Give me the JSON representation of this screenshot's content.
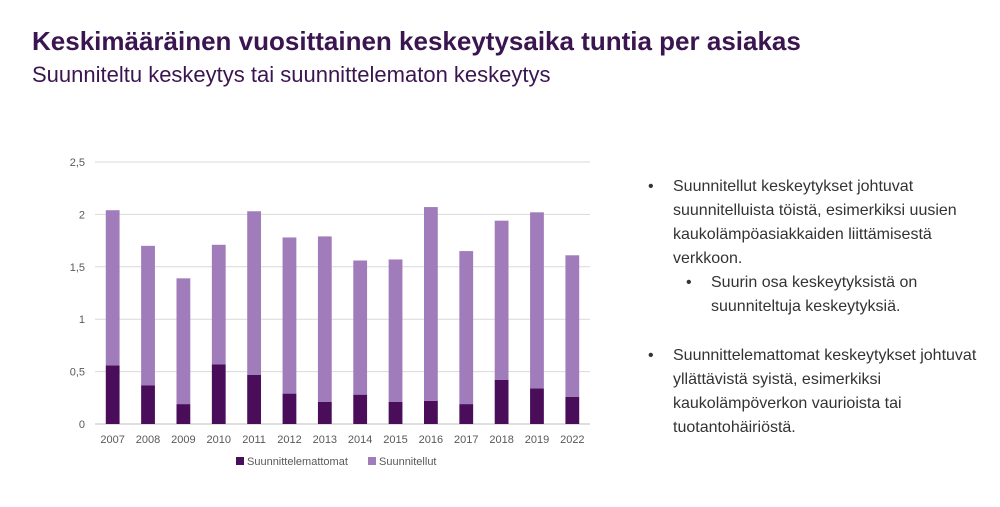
{
  "title": "Keskimääräinen vuosittainen keskeytysaika tuntia per asiakas",
  "subtitle": "Suunniteltu keskeytys tai suunnittelematon keskeytys",
  "bullets": {
    "b1": "Suunnitellut keskeytykset johtuvat suunnitelluista töistä, esimerkiksi uusien kaukolämpöasiakkaiden liittämisestä verkkoon.",
    "b1_sub": "Suurin osa keskeytyksistä on suunniteltuja keskeytyksiä.",
    "b2": "Suunnittelemattomat keskeytykset johtuvat yllättävistä syistä, esimerkiksi kaukolämpöverkon vaurioista tai tuotantohäiriöstä."
  },
  "chart_data": {
    "type": "bar",
    "stacked": true,
    "categories": [
      "2007",
      "2008",
      "2009",
      "2010",
      "2011",
      "2012",
      "2013",
      "2014",
      "2015",
      "2016",
      "2017",
      "2018",
      "2019",
      "2022"
    ],
    "series": [
      {
        "name": "Suunnittelemattomat",
        "color": "#4a0d5a",
        "values": [
          0.56,
          0.37,
          0.19,
          0.57,
          0.47,
          0.29,
          0.21,
          0.28,
          0.21,
          0.22,
          0.19,
          0.42,
          0.34,
          0.26
        ]
      },
      {
        "name": "Suunnitellut",
        "color": "#a07cba",
        "values": [
          1.48,
          1.33,
          1.2,
          1.14,
          1.56,
          1.49,
          1.58,
          1.28,
          1.36,
          1.85,
          1.46,
          1.52,
          1.68,
          1.35
        ]
      }
    ],
    "ylim": [
      0,
      2.5
    ],
    "yticks": [
      "0",
      "0,5",
      "1",
      "1,5",
      "2",
      "2,5"
    ],
    "grid": true,
    "legend": "bottom"
  }
}
